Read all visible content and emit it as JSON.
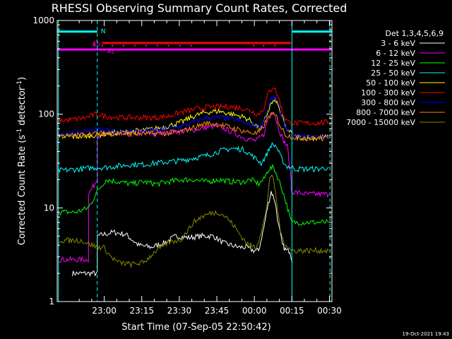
{
  "chart_data": {
    "type": "line",
    "title": "RHESSI Observing Summary Count Rates, Corrected",
    "xlabel": "Start Time (07-Sep-05 22:50:42)",
    "ylabel": "Corrected Count Rate (s⁻¹ detector⁻¹)",
    "ylabel_parts": {
      "pre": "Corrected Count Rate (s",
      "exp1": "-1",
      "mid": " detector",
      "exp2": "-1",
      "post": ")"
    },
    "yscale": "log",
    "ylim": [
      1,
      1000
    ],
    "xlim": [
      -9.5,
      100.3
    ],
    "x_ticks": [
      {
        "x": 9.3,
        "label": "23:00"
      },
      {
        "x": 24.3,
        "label": "23:15"
      },
      {
        "x": 39.3,
        "label": "23:30"
      },
      {
        "x": 54.3,
        "label": "23:45"
      },
      {
        "x": 69.3,
        "label": "00:00"
      },
      {
        "x": 84.3,
        "label": "00:15"
      },
      {
        "x": 99.3,
        "label": "00:30"
      }
    ],
    "y_ticks": [
      {
        "y": 1,
        "label": "1"
      },
      {
        "y": 10,
        "label": "10"
      },
      {
        "y": 100,
        "label": "100"
      },
      {
        "y": 1000,
        "label": "1000"
      }
    ],
    "legend": {
      "title": "Det 1,3,4,5,6,9",
      "placement": "right",
      "entries": [
        "3 - 6 keV",
        "6 - 12 keV",
        "12 - 25 keV",
        "25 - 50 keV",
        "50 - 100 keV",
        "100 - 300 keV",
        "300 - 800 keV",
        "800 - 7000 keV",
        "7000 - 15000 keV"
      ]
    },
    "flags": [
      {
        "label": "N",
        "x_start": -9.5,
        "x_end": 6.5,
        "gap_end": 8.5,
        "resume": 84.5,
        "x_end2": 100.3,
        "y": 760,
        "color": "#00ffff"
      },
      {
        "label": "F",
        "x_start": 8.5,
        "x_end": 84.0,
        "y": 575,
        "color": "#ff0000"
      },
      {
        "label": "A0",
        "x_start": -9.5,
        "x_end": 100.3,
        "y": 490,
        "color": "#ff00ff"
      },
      {
        "label": "A1",
        "y": 540,
        "color": "#ff00ff"
      }
    ],
    "vertical_lines": [
      {
        "x": -9.0,
        "color": "#00ffff",
        "style": "solid"
      },
      {
        "x": 6.5,
        "color": "#00ffff",
        "style": "dashed"
      },
      {
        "x": 84.3,
        "color": "#00ffff",
        "style": "solid"
      },
      {
        "x": 99.5,
        "color": "#00ffff",
        "style": "dashed"
      }
    ],
    "footer": "19-Oct-2021 19:43",
    "series": [
      {
        "name": "3 - 6 keV",
        "color": "#ffffff",
        "x": [
          -3.5,
          6.5,
          6.5,
          9,
          13,
          18,
          23,
          28,
          33,
          38,
          43,
          48,
          53,
          57,
          60,
          63,
          66,
          69,
          71,
          73,
          74.5,
          76,
          77.5,
          79,
          80.5,
          82,
          83.5,
          84.5
        ],
        "y": [
          2.0,
          2.0,
          5.0,
          5.2,
          5.5,
          5.2,
          4.0,
          3.8,
          4.2,
          5.0,
          4.8,
          5.0,
          5.0,
          4.2,
          4.0,
          3.8,
          3.8,
          3.5,
          3.5,
          6.0,
          10.0,
          15.0,
          12.0,
          6.5,
          4.0,
          3.5,
          3.5,
          2.6
        ]
      },
      {
        "name": "6 - 12 keV",
        "color": "#ff00ff",
        "x": [
          -9,
          3,
          3,
          6.5,
          6.5,
          9,
          15,
          22,
          30,
          38,
          45,
          50,
          55,
          60,
          66,
          70,
          73,
          75,
          77,
          79,
          81,
          82.5,
          84,
          84,
          90,
          96,
          99
        ],
        "y": [
          2.8,
          2.8,
          14,
          20,
          58,
          60,
          60,
          62,
          62,
          65,
          68,
          72,
          75,
          65,
          55,
          52,
          60,
          95,
          110,
          70,
          52,
          45,
          20,
          15,
          14,
          14,
          14
        ]
      },
      {
        "name": "12 - 25 keV",
        "color": "#00ff00",
        "x": [
          -9,
          -2,
          3,
          6.5,
          10,
          15,
          20,
          25,
          30,
          35,
          40,
          45,
          50,
          55,
          60,
          65,
          68,
          71,
          73,
          75,
          77,
          79,
          81,
          83,
          84,
          90,
          95,
          99
        ],
        "y": [
          9.0,
          9.0,
          10.0,
          15.0,
          20,
          19,
          18,
          19,
          18,
          19,
          20,
          20,
          19,
          20,
          19,
          19,
          20,
          18,
          20,
          26,
          27,
          20,
          14,
          9,
          7,
          7,
          7,
          7
        ]
      },
      {
        "name": "25 - 50 keV",
        "color": "#00ffff",
        "x": [
          -9,
          0,
          6,
          10,
          15,
          20,
          25,
          30,
          35,
          40,
          45,
          50,
          55,
          60,
          65,
          69,
          72,
          74,
          76,
          78,
          80,
          82,
          86,
          90,
          95,
          99
        ],
        "y": [
          25,
          26,
          27,
          27,
          28,
          29,
          29,
          30,
          31,
          32,
          34,
          36,
          40,
          43,
          42,
          35,
          30,
          36,
          47,
          46,
          34,
          28,
          26,
          26,
          26,
          27
        ]
      },
      {
        "name": "50 - 100 keV",
        "color": "#ffff00",
        "x": [
          -9,
          0,
          6,
          10,
          20,
          30,
          35,
          40,
          45,
          50,
          55,
          60,
          64,
          67,
          70,
          72,
          74,
          76,
          78,
          80,
          82,
          86,
          92,
          99
        ],
        "y": [
          57,
          58,
          60,
          62,
          65,
          70,
          75,
          82,
          95,
          105,
          108,
          100,
          95,
          88,
          75,
          70,
          95,
          130,
          140,
          100,
          70,
          57,
          56,
          57
        ]
      },
      {
        "name": "100 - 300 keV",
        "color": "#ff0000",
        "x": [
          -9,
          -3,
          2,
          6,
          10,
          15,
          20,
          25,
          30,
          35,
          40,
          45,
          50,
          55,
          60,
          65,
          68,
          71,
          73,
          75,
          77,
          79,
          81,
          83,
          86,
          92,
          99
        ],
        "y": [
          85,
          88,
          92,
          100,
          95,
          92,
          92,
          92,
          92,
          95,
          105,
          112,
          118,
          120,
          120,
          115,
          108,
          100,
          115,
          170,
          200,
          150,
          95,
          82,
          80,
          80,
          82
        ]
      },
      {
        "name": "300 - 800 keV",
        "color": "#0000ff",
        "x": [
          -9,
          0,
          6,
          10,
          20,
          30,
          35,
          40,
          45,
          50,
          55,
          60,
          64,
          67,
          70,
          72,
          74,
          76,
          78,
          80,
          82,
          86,
          92,
          99
        ],
        "y": [
          62,
          64,
          68,
          66,
          66,
          67,
          70,
          74,
          82,
          92,
          92,
          90,
          84,
          78,
          75,
          75,
          100,
          145,
          150,
          100,
          70,
          58,
          57,
          58
        ]
      },
      {
        "name": "800 - 7000 keV",
        "color": "#ff8800",
        "x": [
          -9,
          0,
          6,
          10,
          20,
          30,
          35,
          40,
          45,
          50,
          55,
          60,
          65,
          70,
          72,
          74,
          76,
          78,
          80,
          82,
          86,
          92,
          99
        ],
        "y": [
          58,
          60,
          62,
          62,
          62,
          62,
          63,
          65,
          72,
          80,
          78,
          72,
          66,
          62,
          66,
          85,
          100,
          95,
          72,
          60,
          56,
          55,
          55
        ]
      },
      {
        "name": "7000 - 15000 keV",
        "color": "#888800",
        "x": [
          -9,
          0,
          6.5,
          9,
          12,
          15,
          20,
          25,
          30,
          35,
          40,
          45,
          48,
          52,
          55,
          58,
          61,
          64,
          67,
          70,
          72,
          74,
          75.5,
          77,
          78.5,
          80,
          82,
          84,
          90,
          95,
          99
        ],
        "y": [
          4.5,
          4.5,
          3.8,
          3.8,
          3.0,
          2.6,
          2.5,
          2.6,
          3.5,
          4.3,
          4.6,
          7.0,
          8.0,
          8.8,
          9.0,
          8.0,
          6.5,
          5.0,
          4.0,
          3.8,
          5.5,
          9.0,
          22,
          20,
          10,
          5.0,
          4.0,
          3.5,
          3.5,
          3.5,
          3.5
        ]
      }
    ]
  }
}
